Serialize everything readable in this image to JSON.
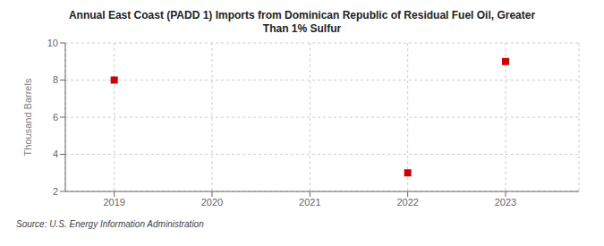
{
  "chart_data": {
    "type": "scatter",
    "title": "Annual East Coast (PADD 1) Imports from Dominican Republic of Residual Fuel Oil, Greater\nThan 1% Sulfur",
    "ylabel": "Thousand Barrels",
    "source": "Source: U.S. Energy Information Administration",
    "x": [
      2019,
      2022,
      2023
    ],
    "values": [
      8.0,
      3.0,
      9.0
    ],
    "color": "#cc0000",
    "marker": "square",
    "xlim": [
      2018.5,
      2023.75
    ],
    "xticks": [
      2019,
      2020,
      2021,
      2022,
      2023
    ],
    "ylim": [
      2,
      10
    ],
    "yticks": [
      2,
      4,
      6,
      8,
      10
    ],
    "grid": true
  }
}
